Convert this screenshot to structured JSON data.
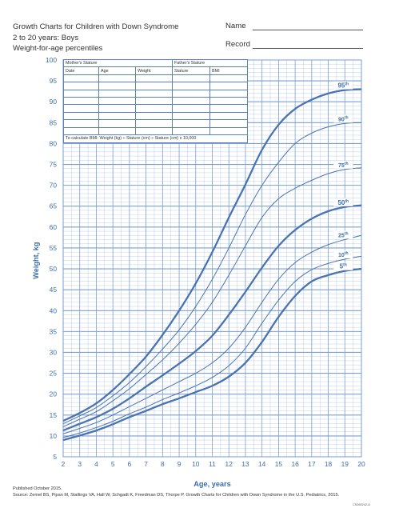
{
  "header": {
    "title": "Growth Charts for Children with Down Syndrome",
    "subtitle1": "2 to 20 years: Boys",
    "subtitle2": "Weight-for-age percentiles",
    "name_label": "Name",
    "record_label": "Record"
  },
  "table": {
    "mother_stature": "Mother's Stature",
    "father_stature": "Father's Stature",
    "columns": [
      "Date",
      "Age",
      "Weight",
      "Stature",
      "BMI"
    ],
    "bmi_formula": "To calculate BMI: Weight (kg) ÷ Stature (cm) ÷ Stature (cm) x 10,000"
  },
  "footer": {
    "published": "Published October 2015.",
    "source": "Source: Zemel BS, Pipan M, Stallings VA, Hall W, Schgadt K, Freedman DS, Thorpe P. Growth Charts for Children with Down Syndrome in the U.S. Pediatrics, 2015.",
    "code": "CS260242-A"
  },
  "colors": {
    "line": "#4a73b2",
    "grid": "#7b9fd2",
    "text": "#3a6db5"
  },
  "chart_data": {
    "type": "line",
    "xlabel": "Age, years",
    "ylabel": "Weight, kg",
    "xlim": [
      2,
      20
    ],
    "ylim": [
      5,
      100
    ],
    "x_ticks": [
      2,
      3,
      4,
      5,
      6,
      7,
      8,
      9,
      10,
      11,
      12,
      13,
      14,
      15,
      16,
      17,
      18,
      19,
      20
    ],
    "y_ticks": [
      5,
      10,
      15,
      20,
      25,
      30,
      35,
      40,
      45,
      50,
      55,
      60,
      65,
      70,
      75,
      80,
      85,
      90,
      95,
      100
    ],
    "x": [
      2,
      3,
      4,
      5,
      6,
      7,
      8,
      9,
      10,
      11,
      12,
      13,
      14,
      15,
      16,
      17,
      18,
      19,
      20
    ],
    "series": [
      {
        "name": "5",
        "label_suffix": "th",
        "bold": true,
        "values": [
          9,
          10.1,
          11.3,
          12.8,
          14.5,
          16,
          17.6,
          19,
          20.5,
          22,
          24.2,
          27.5,
          32.5,
          38.5,
          43.5,
          47,
          48.5,
          49.5,
          50
        ]
      },
      {
        "name": "10",
        "label_suffix": "th",
        "bold": false,
        "values": [
          9.6,
          10.7,
          12,
          13.5,
          15.3,
          16.9,
          18.7,
          20.3,
          22,
          24,
          26.8,
          31,
          37,
          42.5,
          47,
          49.8,
          51.3,
          52.3,
          53
        ]
      },
      {
        "name": "25",
        "label_suffix": "th",
        "bold": false,
        "values": [
          10.5,
          11.8,
          13.2,
          15,
          17,
          19,
          21,
          23,
          25,
          27.5,
          31,
          36,
          42,
          47.5,
          51.5,
          54,
          55.8,
          57,
          58
        ]
      },
      {
        "name": "50",
        "label_suffix": "th",
        "bold": true,
        "values": [
          11.3,
          12.9,
          14.5,
          16.5,
          19,
          21.8,
          24.5,
          27.3,
          30.3,
          34,
          39,
          44.5,
          50.3,
          55.5,
          59.3,
          62,
          63.8,
          64.8,
          65.2
        ]
      },
      {
        "name": "75",
        "label_suffix": "th",
        "bold": false,
        "values": [
          12.2,
          14,
          15.8,
          18.4,
          21.3,
          24.7,
          28.2,
          32.2,
          36.7,
          42,
          48.5,
          55.5,
          62.3,
          66.8,
          69.3,
          71.2,
          72.8,
          73.8,
          74.2
        ]
      },
      {
        "name": "90",
        "label_suffix": "th",
        "bold": false,
        "values": [
          12.9,
          14.8,
          16.8,
          19.6,
          22.8,
          26.6,
          30.8,
          35.4,
          41,
          47.5,
          55,
          63,
          70,
          75.5,
          80,
          82.5,
          84,
          84.8,
          85
        ]
      },
      {
        "name": "95",
        "label_suffix": "th",
        "bold": true,
        "values": [
          13.6,
          15.5,
          17.8,
          21,
          24.8,
          29,
          34.2,
          40,
          46.5,
          54,
          62.3,
          70.2,
          78.5,
          84.5,
          88.3,
          90.5,
          92,
          92.8,
          93
        ]
      }
    ],
    "grid": true
  }
}
